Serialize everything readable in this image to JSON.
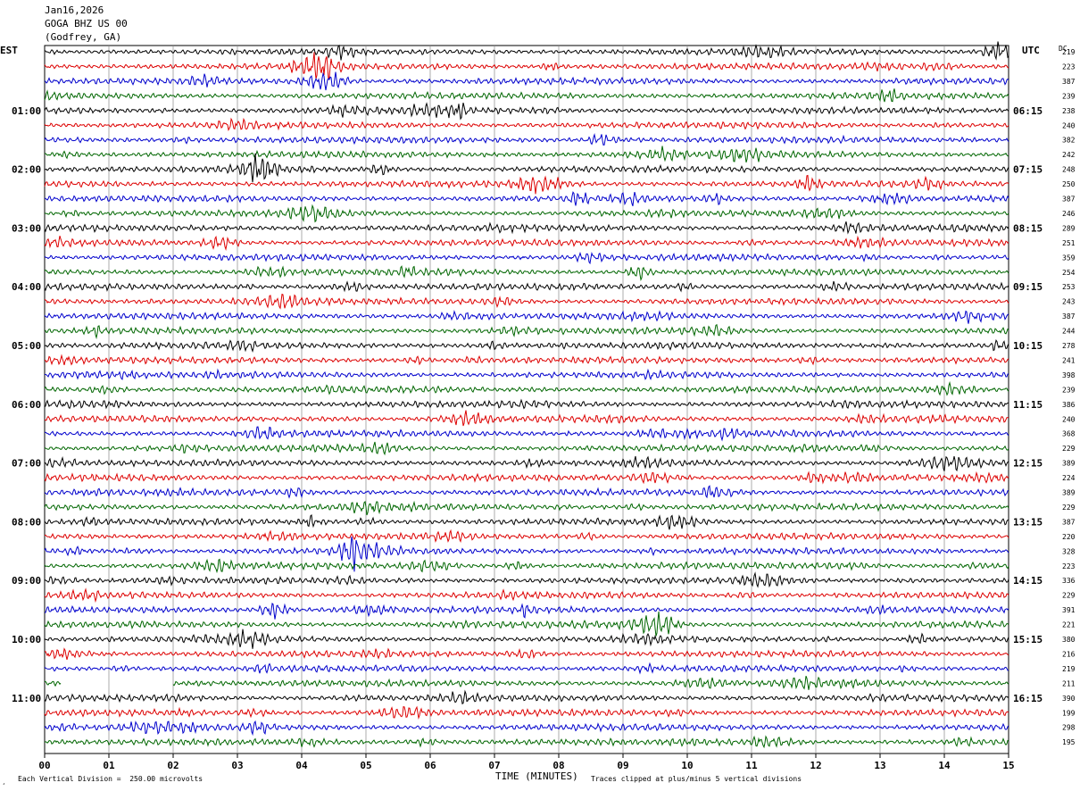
{
  "header": {
    "date": "Jan16,2026",
    "station": "GOGA BHZ US 00",
    "location": "(Godfrey, GA)"
  },
  "left_tz": "EST",
  "right_tz": "UTC",
  "dc_label": "DC",
  "footer": {
    "vertical_division": "Each Vertical Division =  250.00 microvolts",
    "clip_note": "Traces clipped at plus/minus 5 vertical divisions",
    "corner_mark": "¸"
  },
  "chart_data": {
    "type": "line",
    "title": "",
    "xlabel": "TIME (MINUTES)",
    "ylabel": "",
    "xlim": [
      0,
      15
    ],
    "x_ticks": [
      "00",
      "01",
      "02",
      "03",
      "04",
      "05",
      "06",
      "07",
      "08",
      "09",
      "10",
      "11",
      "12",
      "13",
      "14",
      "15"
    ],
    "grid": "vertical lines every minute",
    "trace_colors": [
      "#000000",
      "#dd0000",
      "#0000cc",
      "#006600"
    ],
    "left_hour_labels": [
      "01:00",
      "02:00",
      "03:00",
      "04:00",
      "05:00",
      "06:00",
      "07:00",
      "08:00",
      "09:00",
      "10:00",
      "11:00"
    ],
    "right_hour_labels": [
      "06:15",
      "07:15",
      "08:15",
      "09:15",
      "10:15",
      "11:15",
      "12:15",
      "13:15",
      "14:15",
      "15:15",
      "16:15"
    ],
    "dc_values": [
      "219",
      "223",
      "387",
      "239",
      "238",
      "240",
      "382",
      "242",
      "248",
      "250",
      "387",
      "246",
      "289",
      "251",
      "359",
      "254",
      "253",
      "243",
      "387",
      "244",
      "278",
      "241",
      "398",
      "239",
      "386",
      "240",
      "368",
      "229",
      "389",
      "224",
      "389",
      "229",
      "387",
      "220",
      "328",
      "223",
      "336",
      "229",
      "391",
      "221",
      "380",
      "216",
      "219",
      "211",
      "390",
      "199",
      "298",
      "195"
    ],
    "gap": {
      "row": 43,
      "from_minute": 0.25,
      "to_minute": 2.0
    },
    "rows": 48,
    "minutes_per_row": 15
  }
}
